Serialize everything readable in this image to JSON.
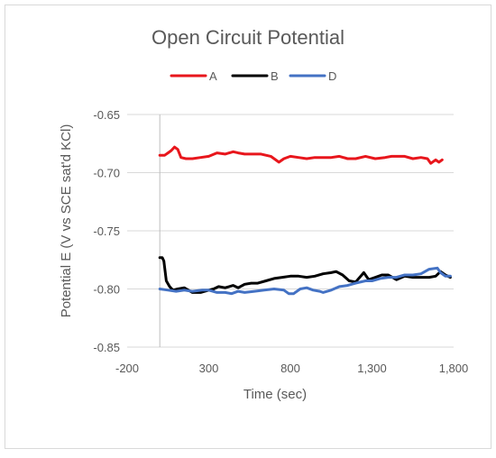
{
  "chart_data": {
    "type": "line",
    "title": "Open Circuit Potential",
    "xlabel": "Time (sec)",
    "ylabel": "Potential E (V vs SCE sat'd KCl)",
    "xlim": [
      -200,
      1800
    ],
    "ylim": [
      -0.85,
      -0.65
    ],
    "x_ticks": [
      -200,
      300,
      800,
      1300,
      1800
    ],
    "x_tick_labels": [
      "-200",
      "300",
      "800",
      "1,300",
      "1,800"
    ],
    "y_ticks": [
      -0.85,
      -0.8,
      -0.75,
      -0.7,
      -0.65
    ],
    "y_tick_labels": [
      "-0.85",
      "-0.80",
      "-0.75",
      "-0.70",
      "-0.65"
    ],
    "grid": "horizontal",
    "legend_position": "top",
    "colors": {
      "A": "#e8161c",
      "B": "#000000",
      "D": "#4472c4"
    },
    "series": [
      {
        "name": "A",
        "x": [
          0,
          30,
          50,
          70,
          90,
          110,
          130,
          160,
          200,
          250,
          300,
          350,
          400,
          450,
          480,
          520,
          570,
          620,
          680,
          730,
          760,
          800,
          850,
          900,
          950,
          1000,
          1050,
          1100,
          1150,
          1200,
          1260,
          1320,
          1380,
          1420,
          1460,
          1500,
          1550,
          1600,
          1640,
          1660,
          1690,
          1710,
          1730
        ],
        "y": [
          -0.685,
          -0.685,
          -0.683,
          -0.681,
          -0.678,
          -0.68,
          -0.687,
          -0.688,
          -0.688,
          -0.687,
          -0.686,
          -0.683,
          -0.684,
          -0.682,
          -0.683,
          -0.684,
          -0.684,
          -0.684,
          -0.686,
          -0.691,
          -0.688,
          -0.686,
          -0.687,
          -0.688,
          -0.687,
          -0.687,
          -0.687,
          -0.686,
          -0.688,
          -0.688,
          -0.686,
          -0.688,
          -0.687,
          -0.686,
          -0.686,
          -0.686,
          -0.688,
          -0.687,
          -0.688,
          -0.692,
          -0.689,
          -0.691,
          -0.689
        ]
      },
      {
        "name": "B",
        "x": [
          0,
          15,
          25,
          40,
          60,
          80,
          110,
          150,
          200,
          250,
          300,
          330,
          360,
          400,
          450,
          480,
          520,
          560,
          600,
          650,
          700,
          750,
          800,
          850,
          900,
          950,
          1000,
          1050,
          1080,
          1120,
          1160,
          1200,
          1250,
          1280,
          1320,
          1360,
          1400,
          1450,
          1500,
          1550,
          1600,
          1650,
          1690,
          1720,
          1750,
          1780
        ],
        "y": [
          -0.773,
          -0.773,
          -0.776,
          -0.793,
          -0.798,
          -0.801,
          -0.8,
          -0.799,
          -0.803,
          -0.803,
          -0.801,
          -0.8,
          -0.798,
          -0.799,
          -0.797,
          -0.799,
          -0.796,
          -0.795,
          -0.795,
          -0.793,
          -0.791,
          -0.79,
          -0.789,
          -0.789,
          -0.79,
          -0.789,
          -0.787,
          -0.786,
          -0.785,
          -0.788,
          -0.793,
          -0.794,
          -0.786,
          -0.792,
          -0.79,
          -0.788,
          -0.788,
          -0.792,
          -0.789,
          -0.79,
          -0.79,
          -0.79,
          -0.789,
          -0.785,
          -0.788,
          -0.79
        ]
      },
      {
        "name": "D",
        "x": [
          0,
          50,
          100,
          150,
          200,
          260,
          300,
          350,
          400,
          440,
          480,
          520,
          580,
          640,
          700,
          760,
          790,
          820,
          860,
          900,
          940,
          980,
          1000,
          1050,
          1100,
          1150,
          1200,
          1260,
          1300,
          1350,
          1400,
          1450,
          1500,
          1550,
          1600,
          1650,
          1700,
          1720,
          1750,
          1780
        ],
        "y": [
          -0.8,
          -0.801,
          -0.802,
          -0.801,
          -0.802,
          -0.801,
          -0.801,
          -0.803,
          -0.803,
          -0.804,
          -0.802,
          -0.803,
          -0.802,
          -0.801,
          -0.8,
          -0.801,
          -0.804,
          -0.804,
          -0.8,
          -0.799,
          -0.801,
          -0.802,
          -0.803,
          -0.801,
          -0.798,
          -0.797,
          -0.795,
          -0.793,
          -0.793,
          -0.791,
          -0.79,
          -0.79,
          -0.788,
          -0.788,
          -0.787,
          -0.783,
          -0.782,
          -0.786,
          -0.789,
          -0.789
        ]
      }
    ]
  }
}
